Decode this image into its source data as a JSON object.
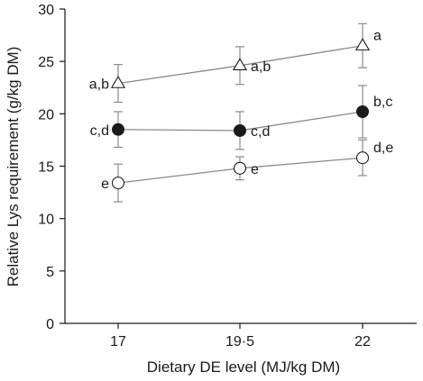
{
  "chart_data": {
    "type": "line",
    "xlabel": "Dietary DE level (MJ/kg DM)",
    "ylabel": "Relative Lys requirement (g/kg DM)",
    "ylim": [
      0,
      30
    ],
    "yticks": [
      "0",
      "5",
      "10",
      "15",
      "20",
      "25",
      "30"
    ],
    "categories": [
      "17",
      "19·5",
      "22"
    ],
    "grid": false,
    "legend": "none",
    "series": [
      {
        "marker": "open-triangle",
        "values": [
          22.9,
          24.6,
          26.5
        ],
        "error": [
          1.8,
          1.8,
          2.1
        ],
        "labels": [
          "a,b",
          "a,b",
          "a"
        ],
        "label_side": [
          "left",
          "right",
          "right"
        ]
      },
      {
        "marker": "filled-circle",
        "values": [
          18.5,
          18.4,
          20.2
        ],
        "error": [
          1.7,
          1.8,
          2.5
        ],
        "labels": [
          "c,d",
          "c,d",
          "b,c"
        ],
        "label_side": [
          "left",
          "right",
          "right"
        ]
      },
      {
        "marker": "open-circle",
        "values": [
          13.4,
          14.8,
          15.8
        ],
        "error": [
          1.8,
          1.1,
          1.7
        ],
        "labels": [
          "e",
          "e",
          "d,e"
        ],
        "label_side": [
          "left",
          "right",
          "right"
        ]
      }
    ],
    "colors": {
      "line": "#8a8a8a",
      "marker": "#1a1a1a",
      "axis": "#1a1a1a"
    }
  }
}
